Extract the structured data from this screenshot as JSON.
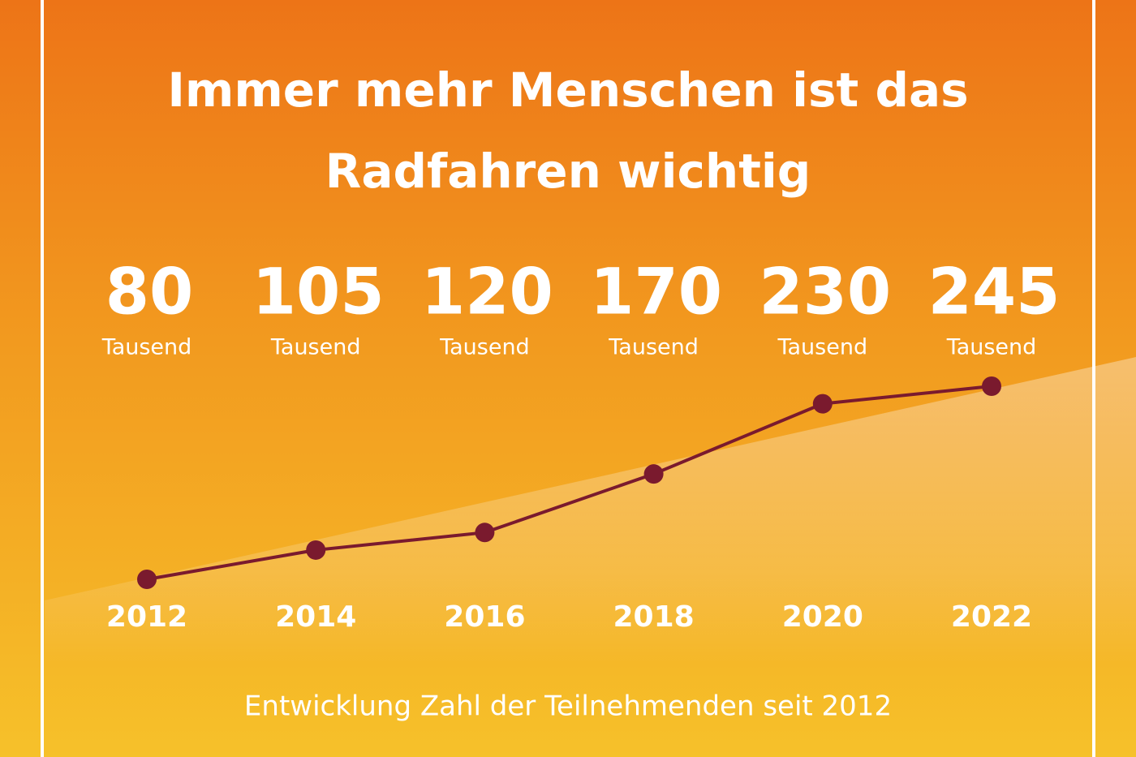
{
  "chart_data": {
    "type": "line",
    "title": "Immer mehr Menschen ist das Radfahren wichtig",
    "caption": "Entwicklung Zahl der Teilnehmenden seit 2012",
    "x": [
      2012,
      2014,
      2016,
      2018,
      2020,
      2022
    ],
    "series": [
      {
        "color": "#7a1a2e",
        "values": [
          80,
          105,
          120,
          170,
          230,
          245
        ]
      }
    ],
    "value_unit": "Tausend"
  }
}
